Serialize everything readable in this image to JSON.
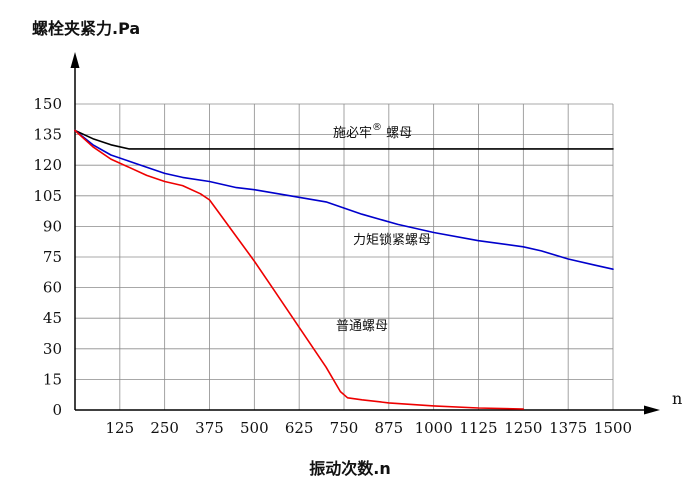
{
  "chart_data": {
    "type": "line",
    "ylabel": "螺栓夹紧力.Pa",
    "xlabel": "振动次数.n",
    "x_axis_end_label": "n",
    "x_ticks": [
      125,
      250,
      375,
      500,
      625,
      750,
      875,
      1000,
      1125,
      1250,
      1375,
      1500
    ],
    "y_ticks": [
      0,
      15,
      30,
      45,
      60,
      75,
      90,
      105,
      120,
      135,
      150
    ],
    "xlim": [
      0,
      1500
    ],
    "ylim": [
      0,
      150
    ],
    "grid": true,
    "series": [
      {
        "name": "施必牢",
        "name_superscript": "®",
        "name_suffix": " 螺母",
        "color": "#000000",
        "x": [
          0,
          50,
          100,
          150,
          200,
          400,
          700,
          1000,
          1250,
          1500
        ],
        "y": [
          137,
          133,
          130,
          128,
          128,
          128,
          128,
          128,
          128,
          128
        ]
      },
      {
        "name": "力矩锁紧螺母",
        "color": "#0000cc",
        "x": [
          0,
          50,
          100,
          150,
          200,
          250,
          300,
          375,
          450,
          500,
          600,
          700,
          800,
          900,
          1000,
          1125,
          1250,
          1300,
          1375,
          1450,
          1500
        ],
        "y": [
          137,
          130,
          125,
          122,
          119,
          116,
          114,
          112,
          109,
          108,
          105,
          102,
          96,
          91,
          87,
          83,
          80,
          78,
          74,
          71,
          69
        ]
      },
      {
        "name": "普通螺母",
        "color": "#ee0000",
        "x": [
          0,
          50,
          100,
          150,
          200,
          250,
          300,
          350,
          375,
          400,
          450,
          500,
          550,
          600,
          650,
          700,
          740,
          760,
          800,
          875,
          1000,
          1125,
          1250
        ],
        "y": [
          137,
          129,
          123,
          119,
          115,
          112,
          110,
          106,
          103,
          97,
          85,
          73,
          60,
          47,
          34,
          21,
          9,
          6,
          5,
          3.5,
          2,
          1,
          0.5
        ]
      }
    ]
  }
}
